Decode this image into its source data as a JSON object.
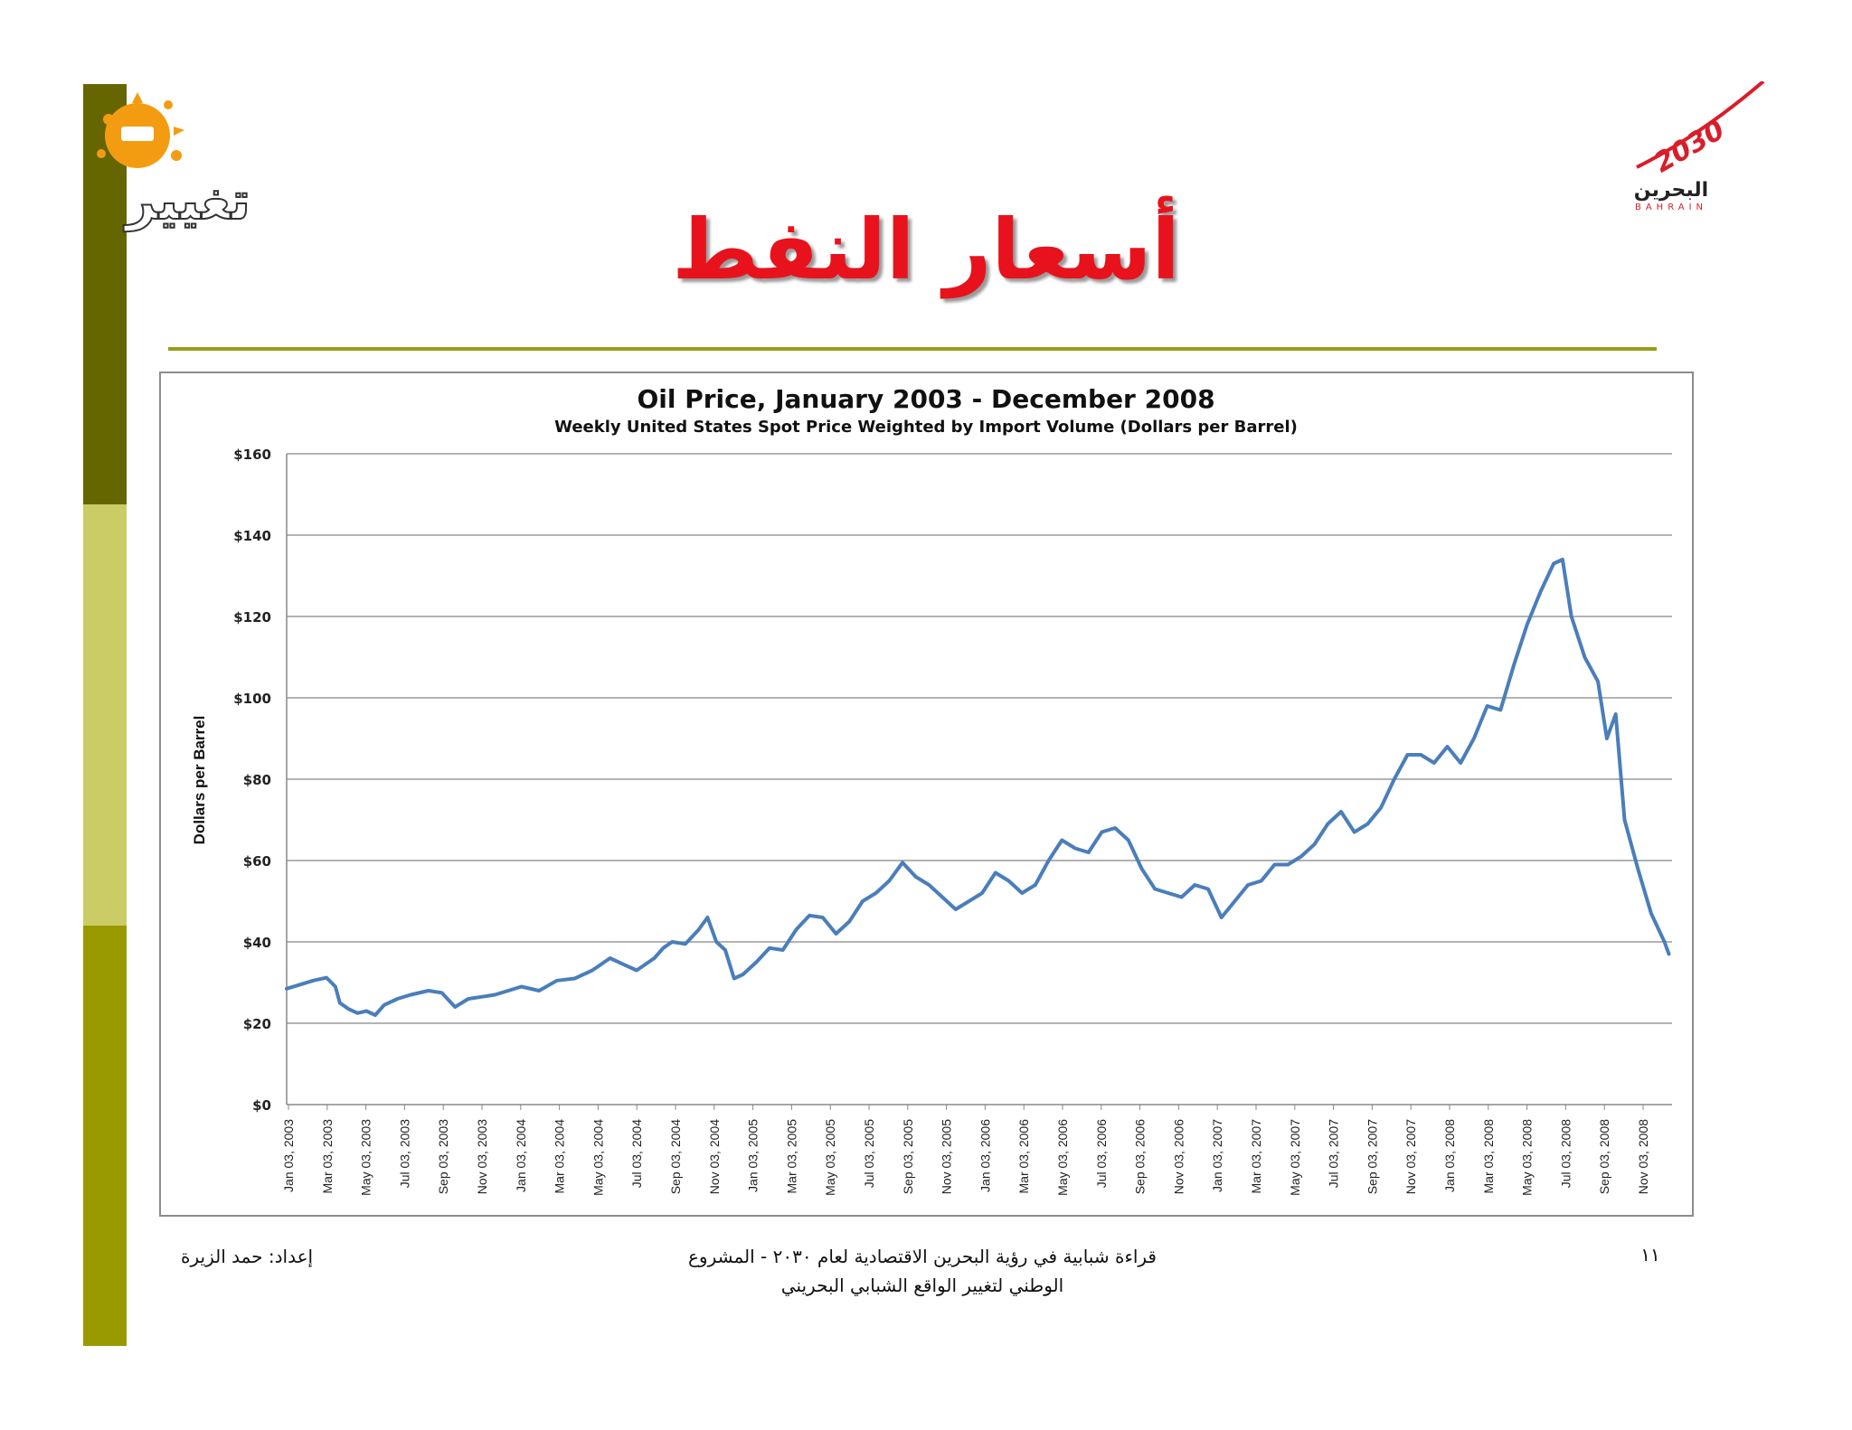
{
  "slide": {
    "title": "أسعار النفط",
    "footer_line1": "قراءة شبابية في رؤية البحرين الاقتصادية لعام ٢٠٣٠ - المشروع",
    "footer_line2": "الوطني لتغيير الواقع الشبابي البحريني",
    "author": "إعداد: حمد الزيرة",
    "page_number": "١١"
  },
  "logos": {
    "left_text": "تغيير",
    "right_year": "2030",
    "right_arabic": "البحرين",
    "right_latin": "BAHRAIN"
  },
  "colors": {
    "title": "#e8121d",
    "rule": "#9b9b1a",
    "line": "#4a7ebb",
    "bar_dark": "#666600",
    "bar_light": "#cccc66",
    "bar_mid": "#999900"
  },
  "chart_data": {
    "type": "line",
    "title": "Oil Price, January 2003 - December 2008",
    "subtitle": "Weekly United States Spot Price Weighted by Import Volume (Dollars per Barrel)",
    "xlabel": "",
    "ylabel": "Dollars per Barrel",
    "ylim": [
      0,
      160
    ],
    "yticks": [
      0,
      20,
      40,
      60,
      80,
      100,
      120,
      140,
      160
    ],
    "ytick_labels": [
      "$0",
      "$20",
      "$40",
      "$60",
      "$80",
      "$100",
      "$120",
      "$140",
      "$160"
    ],
    "grid": true,
    "legend": "none",
    "xlim": [
      "2003-01-03",
      "2008-12-31"
    ],
    "xtick_labels": [
      "Jan 03, 2003",
      "Mar 03, 2003",
      "May 03, 2003",
      "Jul 03, 2003",
      "Sep 03, 2003",
      "Nov 03, 2003",
      "Jan 03, 2004",
      "Mar 03, 2004",
      "May 03, 2004",
      "Jul 03, 2004",
      "Sep 03, 2004",
      "Nov 03, 2004",
      "Jan 03, 2005",
      "Mar 03, 2005",
      "May 03, 2005",
      "Jul 03, 2005",
      "Sep 03, 2005",
      "Nov 03, 2005",
      "Jan 03, 2006",
      "Mar 03, 2006",
      "May 03, 2006",
      "Jul 03, 2006",
      "Sep 03, 2006",
      "Nov 03, 2006",
      "Jan 03, 2007",
      "Mar 03, 2007",
      "May 03, 2007",
      "Jul 03, 2007",
      "Sep 03, 2007",
      "Nov 03, 2007",
      "Jan 03, 2008",
      "Mar 03, 2008",
      "May 03, 2008",
      "Jul 03, 2008",
      "Sep 03, 2008",
      "Nov 03, 2008"
    ],
    "series": [
      {
        "name": "",
        "points": [
          [
            "2003-01-03",
            28.5
          ],
          [
            "2003-01-24",
            29.5
          ],
          [
            "2003-02-14",
            30.5
          ],
          [
            "2003-03-07",
            31.2
          ],
          [
            "2003-03-21",
            29.0
          ],
          [
            "2003-03-28",
            25.0
          ],
          [
            "2003-04-11",
            23.5
          ],
          [
            "2003-04-25",
            22.5
          ],
          [
            "2003-05-09",
            23.0
          ],
          [
            "2003-05-23",
            22.0
          ],
          [
            "2003-06-06",
            24.5
          ],
          [
            "2003-06-27",
            26.0
          ],
          [
            "2003-07-18",
            27.0
          ],
          [
            "2003-08-15",
            28.0
          ],
          [
            "2003-09-05",
            27.5
          ],
          [
            "2003-09-26",
            24.0
          ],
          [
            "2003-10-17",
            26.0
          ],
          [
            "2003-11-07",
            26.5
          ],
          [
            "2003-11-28",
            27.0
          ],
          [
            "2003-12-19",
            28.0
          ],
          [
            "2004-01-09",
            29.0
          ],
          [
            "2004-02-06",
            28.0
          ],
          [
            "2004-03-05",
            30.5
          ],
          [
            "2004-04-02",
            31.0
          ],
          [
            "2004-04-30",
            33.0
          ],
          [
            "2004-05-28",
            36.0
          ],
          [
            "2004-06-18",
            34.5
          ],
          [
            "2004-07-09",
            33.0
          ],
          [
            "2004-08-06",
            36.0
          ],
          [
            "2004-08-20",
            38.5
          ],
          [
            "2004-09-03",
            40.0
          ],
          [
            "2004-09-24",
            39.5
          ],
          [
            "2004-10-15",
            43.0
          ],
          [
            "2004-10-29",
            46.0
          ],
          [
            "2004-11-12",
            40.0
          ],
          [
            "2004-11-26",
            38.0
          ],
          [
            "2004-12-10",
            31.0
          ],
          [
            "2004-12-24",
            32.0
          ],
          [
            "2005-01-14",
            35.0
          ],
          [
            "2005-02-04",
            38.5
          ],
          [
            "2005-02-25",
            38.0
          ],
          [
            "2005-03-18",
            43.0
          ],
          [
            "2005-04-08",
            46.5
          ],
          [
            "2005-04-29",
            46.0
          ],
          [
            "2005-05-20",
            42.0
          ],
          [
            "2005-06-10",
            45.0
          ],
          [
            "2005-07-01",
            50.0
          ],
          [
            "2005-07-22",
            52.0
          ],
          [
            "2005-08-12",
            55.0
          ],
          [
            "2005-09-02",
            59.5
          ],
          [
            "2005-09-23",
            56.0
          ],
          [
            "2005-10-14",
            54.0
          ],
          [
            "2005-11-04",
            51.0
          ],
          [
            "2005-11-25",
            48.0
          ],
          [
            "2005-12-16",
            50.0
          ],
          [
            "2006-01-06",
            52.0
          ],
          [
            "2006-01-27",
            57.0
          ],
          [
            "2006-02-17",
            55.0
          ],
          [
            "2006-03-10",
            52.0
          ],
          [
            "2006-03-31",
            54.0
          ],
          [
            "2006-04-21",
            60.0
          ],
          [
            "2006-05-12",
            65.0
          ],
          [
            "2006-06-02",
            63.0
          ],
          [
            "2006-06-23",
            62.0
          ],
          [
            "2006-07-14",
            67.0
          ],
          [
            "2006-08-04",
            68.0
          ],
          [
            "2006-08-25",
            65.0
          ],
          [
            "2006-09-15",
            58.0
          ],
          [
            "2006-10-06",
            53.0
          ],
          [
            "2006-10-27",
            52.0
          ],
          [
            "2006-11-17",
            51.0
          ],
          [
            "2006-12-08",
            54.0
          ],
          [
            "2006-12-29",
            53.0
          ],
          [
            "2007-01-19",
            46.0
          ],
          [
            "2007-02-09",
            50.0
          ],
          [
            "2007-03-02",
            54.0
          ],
          [
            "2007-03-23",
            55.0
          ],
          [
            "2007-04-13",
            59.0
          ],
          [
            "2007-05-04",
            59.0
          ],
          [
            "2007-05-25",
            61.0
          ],
          [
            "2007-06-15",
            64.0
          ],
          [
            "2007-07-06",
            69.0
          ],
          [
            "2007-07-27",
            72.0
          ],
          [
            "2007-08-17",
            67.0
          ],
          [
            "2007-09-07",
            69.0
          ],
          [
            "2007-09-28",
            73.0
          ],
          [
            "2007-10-19",
            80.0
          ],
          [
            "2007-11-09",
            86.0
          ],
          [
            "2007-11-30",
            86.0
          ],
          [
            "2007-12-21",
            84.0
          ],
          [
            "2008-01-11",
            88.0
          ],
          [
            "2008-02-01",
            84.0
          ],
          [
            "2008-02-22",
            90.0
          ],
          [
            "2008-03-14",
            98.0
          ],
          [
            "2008-04-04",
            97.0
          ],
          [
            "2008-04-25",
            108.0
          ],
          [
            "2008-05-16",
            118.0
          ],
          [
            "2008-06-06",
            126.0
          ],
          [
            "2008-06-27",
            133.0
          ],
          [
            "2008-07-11",
            134.0
          ],
          [
            "2008-07-25",
            120.0
          ],
          [
            "2008-08-15",
            110.0
          ],
          [
            "2008-09-05",
            104.0
          ],
          [
            "2008-09-19",
            90.0
          ],
          [
            "2008-10-03",
            96.0
          ],
          [
            "2008-10-17",
            70.0
          ],
          [
            "2008-11-07",
            58.0
          ],
          [
            "2008-11-28",
            47.0
          ],
          [
            "2008-12-19",
            40.0
          ],
          [
            "2008-12-26",
            37.0
          ]
        ]
      }
    ]
  }
}
